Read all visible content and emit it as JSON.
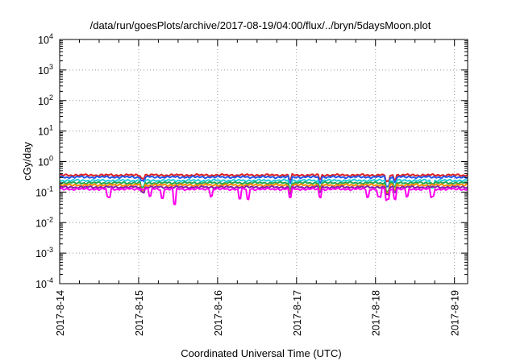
{
  "chart_data": {
    "type": "line",
    "title": "/data/run/goesPlots/archive/2017-08-19/04:00/flux/../bryn/5daysMoon.plot",
    "xlabel": "Coordinated Universal Time (UTC)",
    "ylabel": "cGy/day",
    "yscale": "log",
    "ylim": [
      0.0001,
      10000
    ],
    "y_ticks": [
      {
        "base": "10",
        "exp": "4",
        "value": 10000
      },
      {
        "base": "10",
        "exp": "3",
        "value": 1000
      },
      {
        "base": "10",
        "exp": "2",
        "value": 100
      },
      {
        "base": "10",
        "exp": "1",
        "value": 10
      },
      {
        "base": "10",
        "exp": "0",
        "value": 1
      },
      {
        "base": "10",
        "exp": "-1",
        "value": 0.1
      },
      {
        "base": "10",
        "exp": "-2",
        "value": 0.01
      },
      {
        "base": "10",
        "exp": "-3",
        "value": 0.001
      },
      {
        "base": "10",
        "exp": "-4",
        "value": 0.0001
      }
    ],
    "xlim": [
      "2017-08-14",
      "2017-08-19 04:00"
    ],
    "x_ticks": [
      "2017-8-14",
      "2017-8-15",
      "2017-8-16",
      "2017-8-17",
      "2017-8-18",
      "2017-8-19"
    ],
    "grid": true,
    "legend": "none",
    "series": [
      {
        "color": "#dd2222",
        "level": 0.36,
        "dips": [
          [
            1.05,
            0.8
          ],
          [
            2.92,
            0.7
          ],
          [
            3.3,
            0.75
          ],
          [
            4.15,
            0.6
          ],
          [
            4.25,
            0.75
          ]
        ]
      },
      {
        "color": "#2255ee",
        "level": 0.31,
        "dips": [
          [
            1.05,
            0.75
          ],
          [
            2.92,
            0.65
          ],
          [
            3.3,
            0.7
          ],
          [
            4.15,
            0.5
          ],
          [
            4.25,
            0.7
          ]
        ]
      },
      {
        "color": "#22ccdd",
        "level": 0.24,
        "dips": [
          [
            1.05,
            0.6
          ],
          [
            2.92,
            0.55
          ],
          [
            3.3,
            0.6
          ],
          [
            4.15,
            0.45
          ],
          [
            4.25,
            0.6
          ],
          [
            4.72,
            0.6
          ]
        ]
      },
      {
        "color": "#22aa55",
        "level": 0.2,
        "dips": [
          [
            1.05,
            0.7
          ],
          [
            2.92,
            0.6
          ],
          [
            3.3,
            0.7
          ],
          [
            4.15,
            0.55
          ],
          [
            4.25,
            0.7
          ]
        ]
      },
      {
        "color": "#ff8800",
        "level": 0.17,
        "dips": [
          [
            1.05,
            0.7
          ],
          [
            2.92,
            0.6
          ],
          [
            3.3,
            0.7
          ],
          [
            4.15,
            0.55
          ],
          [
            4.25,
            0.7
          ]
        ]
      },
      {
        "color": "#8822aa",
        "level": 0.145,
        "dips": [
          [
            1.05,
            0.7
          ],
          [
            2.92,
            0.6
          ],
          [
            3.3,
            0.7
          ],
          [
            4.15,
            0.55
          ],
          [
            4.25,
            0.7
          ]
        ]
      },
      {
        "color": "#ff00ee",
        "level": 0.125,
        "dips": [
          [
            0.62,
            0.55
          ],
          [
            1.14,
            0.6
          ],
          [
            1.3,
            0.5
          ],
          [
            1.45,
            0.32
          ],
          [
            1.92,
            0.6
          ],
          [
            2.28,
            0.5
          ],
          [
            2.38,
            0.45
          ],
          [
            2.92,
            0.55
          ],
          [
            3.3,
            0.55
          ],
          [
            3.9,
            0.55
          ],
          [
            4.05,
            0.55
          ],
          [
            4.15,
            0.45
          ],
          [
            4.25,
            0.5
          ],
          [
            4.4,
            0.55
          ],
          [
            4.72,
            0.55
          ]
        ]
      }
    ]
  }
}
